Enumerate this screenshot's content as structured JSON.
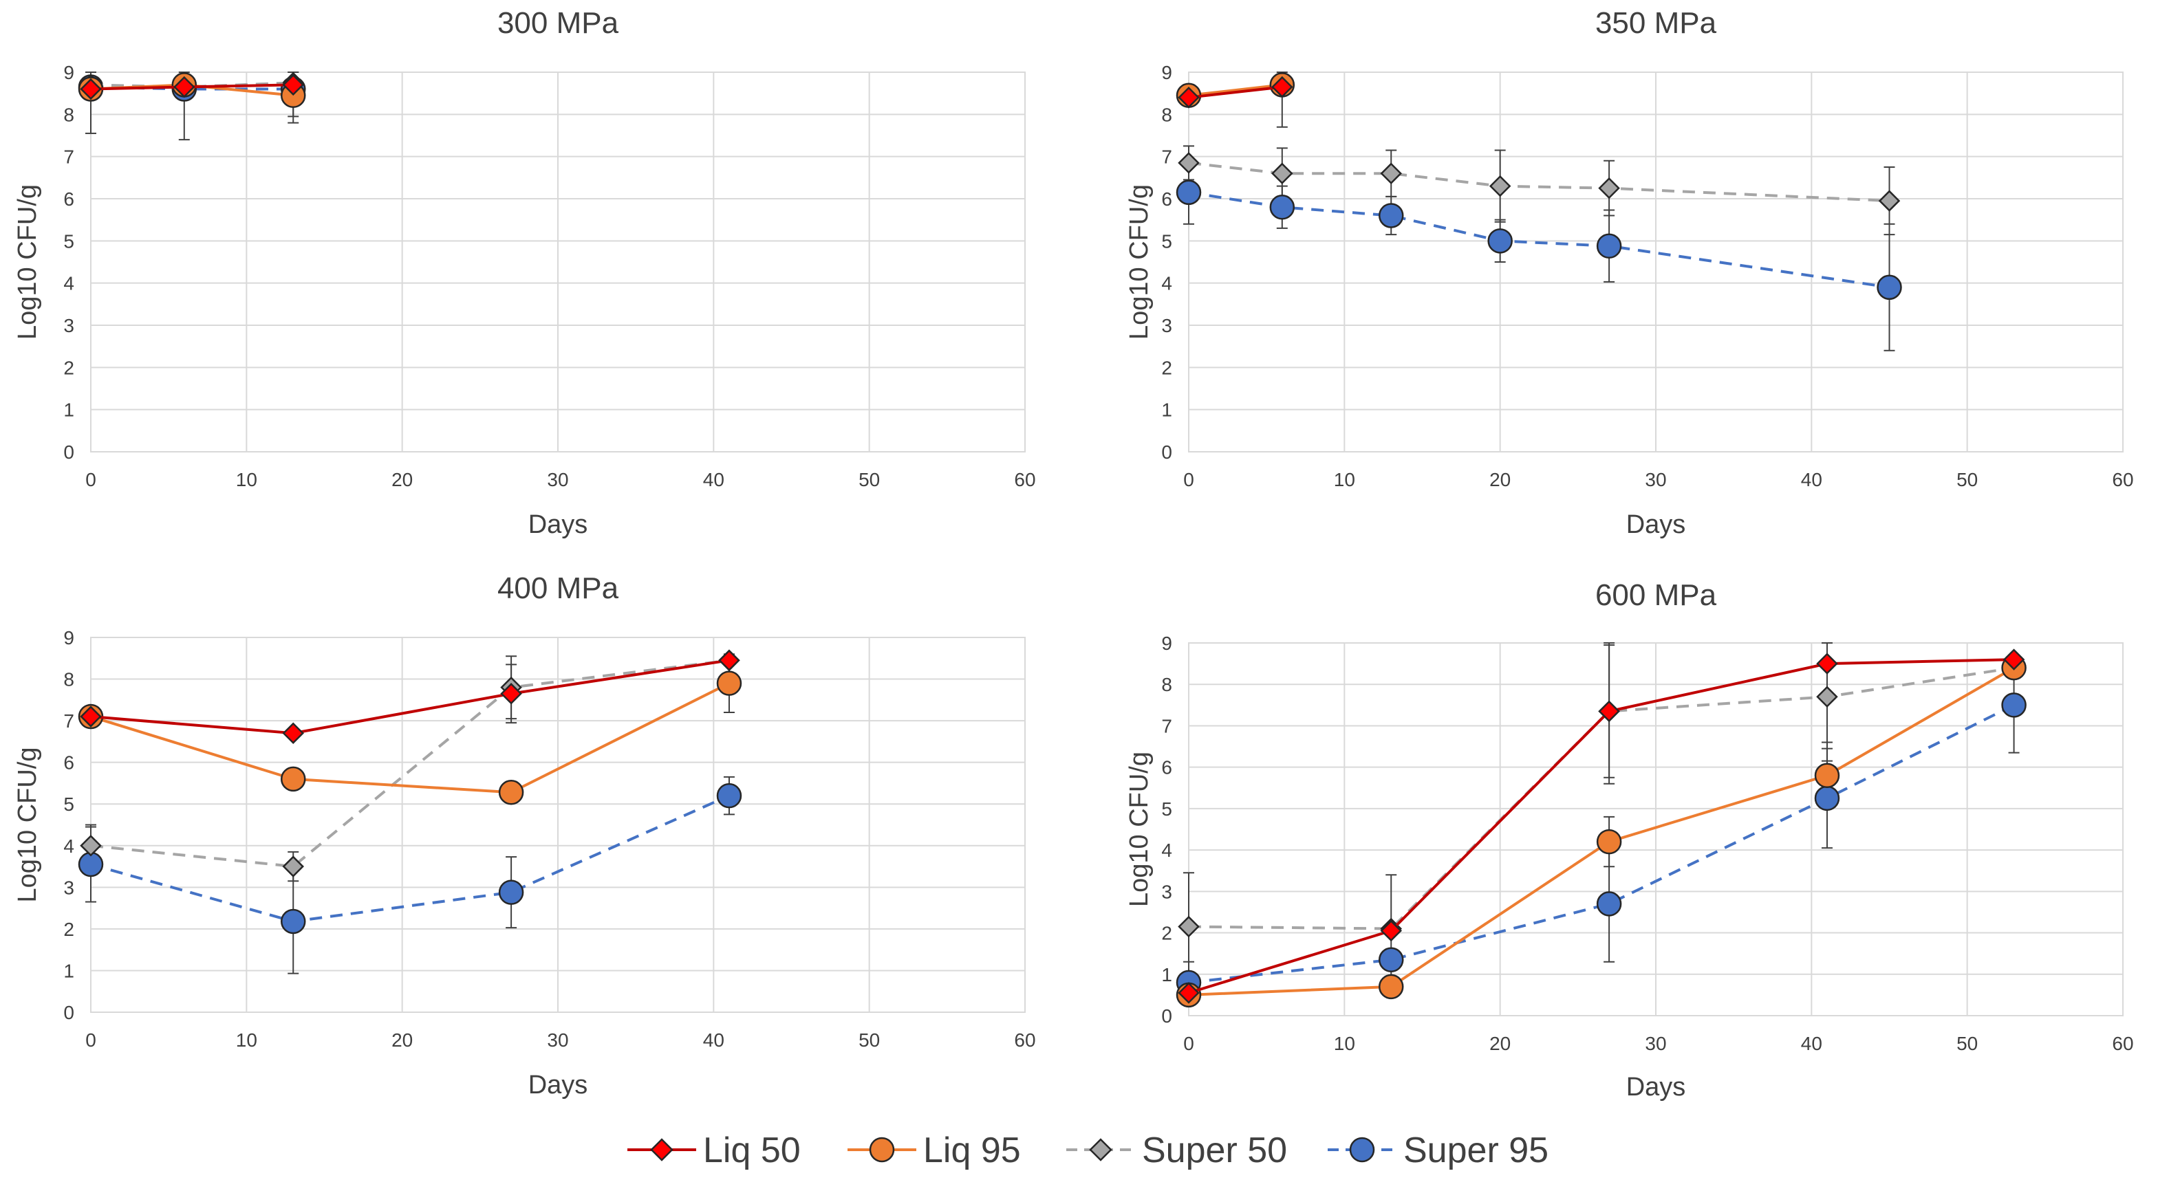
{
  "colors": {
    "liq50": "#c00000",
    "liq95": "#ed7d31",
    "super50": "#a5a5a5",
    "super95": "#4472c4",
    "liq50_marker": "#ff0000",
    "super50_marker": "#a5a5a5",
    "grid": "#d9d9d9",
    "text": "#404040"
  },
  "legend": [
    {
      "key": "liq50",
      "label": "Liq 50",
      "marker": "diamond",
      "dashed": false
    },
    {
      "key": "liq95",
      "label": "Liq 95",
      "marker": "circle",
      "dashed": false
    },
    {
      "key": "super50",
      "label": "Super 50",
      "marker": "diamond",
      "dashed": true
    },
    {
      "key": "super95",
      "label": "Super 95",
      "marker": "circle",
      "dashed": true
    }
  ],
  "chart_data": [
    {
      "type": "line",
      "title": "300 MPa",
      "xlabel": "Days",
      "ylabel": "Log10 CFU/g",
      "xlim": [
        0,
        60
      ],
      "ylim": [
        0,
        9
      ],
      "xticks": [
        0,
        10,
        20,
        30,
        40,
        50,
        60
      ],
      "yticks": [
        0,
        1,
        2,
        3,
        4,
        5,
        6,
        7,
        8,
        9
      ],
      "series": [
        {
          "key": "liq50",
          "name": "Liq 50",
          "x": [
            0,
            6,
            13
          ],
          "y": [
            8.6,
            8.65,
            8.7
          ],
          "err": [
            null,
            null,
            null
          ]
        },
        {
          "key": "liq95",
          "name": "Liq 95",
          "x": [
            0,
            6,
            13
          ],
          "y": [
            8.6,
            8.7,
            8.45
          ],
          "err": [
            null,
            null,
            0.65
          ]
        },
        {
          "key": "super50",
          "name": "Super 50",
          "x": [
            0,
            6,
            13
          ],
          "y": [
            8.7,
            8.65,
            8.75
          ],
          "err": [
            null,
            null,
            0.8
          ]
        },
        {
          "key": "super95",
          "name": "Super 95",
          "x": [
            0,
            6,
            13
          ],
          "y": [
            8.65,
            8.6,
            8.6
          ],
          "err": [
            1.1,
            1.2,
            null
          ]
        }
      ]
    },
    {
      "type": "line",
      "title": "350 MPa",
      "xlabel": "Days",
      "ylabel": "Log10 CFU/g",
      "xlim": [
        0,
        60
      ],
      "ylim": [
        0,
        9
      ],
      "xticks": [
        0,
        10,
        20,
        30,
        40,
        50,
        60
      ],
      "yticks": [
        0,
        1,
        2,
        3,
        4,
        5,
        6,
        7,
        8,
        9
      ],
      "series": [
        {
          "key": "liq50",
          "name": "Liq 50",
          "x": [
            0,
            6
          ],
          "y": [
            8.4,
            8.65
          ],
          "err": [
            null,
            null
          ]
        },
        {
          "key": "liq95",
          "name": "Liq 95",
          "x": [
            0,
            6
          ],
          "y": [
            8.45,
            8.7
          ],
          "err": [
            null,
            1.0
          ]
        },
        {
          "key": "super50",
          "name": "Super 50",
          "x": [
            0,
            6,
            13,
            20,
            27,
            45
          ],
          "y": [
            6.85,
            6.6,
            6.6,
            6.3,
            6.25,
            5.95
          ],
          "err": [
            0.4,
            0.6,
            0.55,
            0.85,
            0.65,
            0.8
          ]
        },
        {
          "key": "super95",
          "name": "Super 95",
          "x": [
            0,
            6,
            13,
            20,
            27,
            45
          ],
          "y": [
            6.15,
            5.8,
            5.6,
            5.0,
            4.88,
            3.9
          ],
          "err": [
            0.75,
            0.5,
            0.45,
            0.5,
            0.85,
            1.5
          ]
        }
      ]
    },
    {
      "type": "line",
      "title": "400 MPa",
      "xlabel": "Days",
      "ylabel": "Log10 CFU/g",
      "xlim": [
        0,
        60
      ],
      "ylim": [
        0,
        9
      ],
      "xticks": [
        0,
        10,
        20,
        30,
        40,
        50,
        60
      ],
      "yticks": [
        0,
        1,
        2,
        3,
        4,
        5,
        6,
        7,
        8,
        9
      ],
      "series": [
        {
          "key": "liq50",
          "name": "Liq 50",
          "x": [
            0,
            13,
            27,
            41
          ],
          "y": [
            7.1,
            6.7,
            7.65,
            8.45
          ],
          "err": [
            null,
            null,
            0.7,
            null
          ]
        },
        {
          "key": "liq95",
          "name": "Liq 95",
          "x": [
            0,
            13,
            27,
            41
          ],
          "y": [
            7.1,
            5.6,
            5.28,
            7.9
          ],
          "err": [
            null,
            null,
            null,
            0.7
          ]
        },
        {
          "key": "super50",
          "name": "Super 50",
          "x": [
            0,
            13,
            27,
            41
          ],
          "y": [
            4.0,
            3.5,
            7.8,
            8.45
          ],
          "err": [
            0.5,
            0.35,
            0.75,
            null
          ]
        },
        {
          "key": "super95",
          "name": "Super 95",
          "x": [
            0,
            13,
            27,
            41
          ],
          "y": [
            3.55,
            2.18,
            2.88,
            5.2
          ],
          "err": [
            0.9,
            1.25,
            0.85,
            0.45
          ]
        }
      ]
    },
    {
      "type": "line",
      "title": "600 MPa",
      "xlabel": "Days",
      "ylabel": "Log10 CFU/g",
      "xlim": [
        0,
        60
      ],
      "ylim": [
        0,
        9
      ],
      "xticks": [
        0,
        10,
        20,
        30,
        40,
        50,
        60
      ],
      "yticks": [
        0,
        1,
        2,
        3,
        4,
        5,
        6,
        7,
        8,
        9
      ],
      "series": [
        {
          "key": "liq50",
          "name": "Liq 50",
          "x": [
            0,
            13,
            27,
            41,
            53
          ],
          "y": [
            0.55,
            2.05,
            7.35,
            8.5,
            8.6
          ],
          "err": [
            null,
            null,
            1.6,
            null,
            null
          ]
        },
        {
          "key": "liq95",
          "name": "Liq 95",
          "x": [
            0,
            13,
            27,
            41,
            53
          ],
          "y": [
            0.5,
            0.7,
            4.2,
            5.8,
            8.4
          ],
          "err": [
            null,
            null,
            0.6,
            0.8,
            null
          ]
        },
        {
          "key": "super50",
          "name": "Super 50",
          "x": [
            0,
            13,
            27,
            41,
            53
          ],
          "y": [
            2.15,
            2.1,
            7.35,
            7.7,
            8.4
          ],
          "err": [
            1.3,
            1.3,
            1.75,
            1.55,
            null
          ]
        },
        {
          "key": "super95",
          "name": "Super 95",
          "x": [
            0,
            13,
            27,
            41,
            53
          ],
          "y": [
            0.8,
            1.35,
            2.7,
            5.25,
            7.5
          ],
          "err": [
            0.5,
            null,
            1.4,
            1.2,
            1.15
          ]
        }
      ]
    }
  ]
}
